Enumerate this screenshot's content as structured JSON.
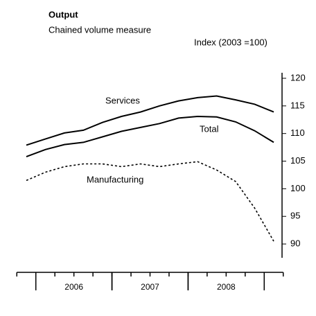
{
  "chart_data": {
    "type": "line",
    "title": "Output",
    "subtitle": "Chained volume measure",
    "y_axis_label": "Index (2003 =100)",
    "categories": [
      null,
      null,
      null,
      null,
      null,
      null,
      null,
      null,
      null,
      null,
      null,
      null,
      null,
      null
    ],
    "x_groups": [
      {
        "label": "2006",
        "first": 1,
        "last": 4
      },
      {
        "label": "2007",
        "first": 5,
        "last": 8
      },
      {
        "label": "2008",
        "first": 9,
        "last": 12
      }
    ],
    "series": [
      {
        "name": "Services",
        "color": "#000000",
        "dash": "solid",
        "values": [
          107.9,
          109,
          110.1,
          110.6,
          112,
          113.1,
          113.9,
          115,
          115.9,
          116.5,
          116.8,
          116.1,
          115.3,
          113.9
        ]
      },
      {
        "name": "Total",
        "color": "#000000",
        "dash": "solid",
        "values": [
          105.8,
          107.1,
          108,
          108.4,
          109.4,
          110.4,
          111.1,
          111.8,
          112.8,
          113.1,
          113,
          112.1,
          110.5,
          108.4
        ]
      },
      {
        "name": "Manufacturing",
        "color": "#000000",
        "dash": "dotted",
        "values": [
          101.5,
          103,
          104,
          104.5,
          104.5,
          104,
          104.5,
          104,
          104.5,
          104.9,
          103.4,
          101.3,
          96.5,
          90.5
        ]
      }
    ],
    "ylim": [
      87.5,
      121
    ],
    "yticks": [
      90,
      95,
      100,
      105,
      110,
      115,
      120
    ],
    "y_axis_side": "right",
    "grid": false
  }
}
